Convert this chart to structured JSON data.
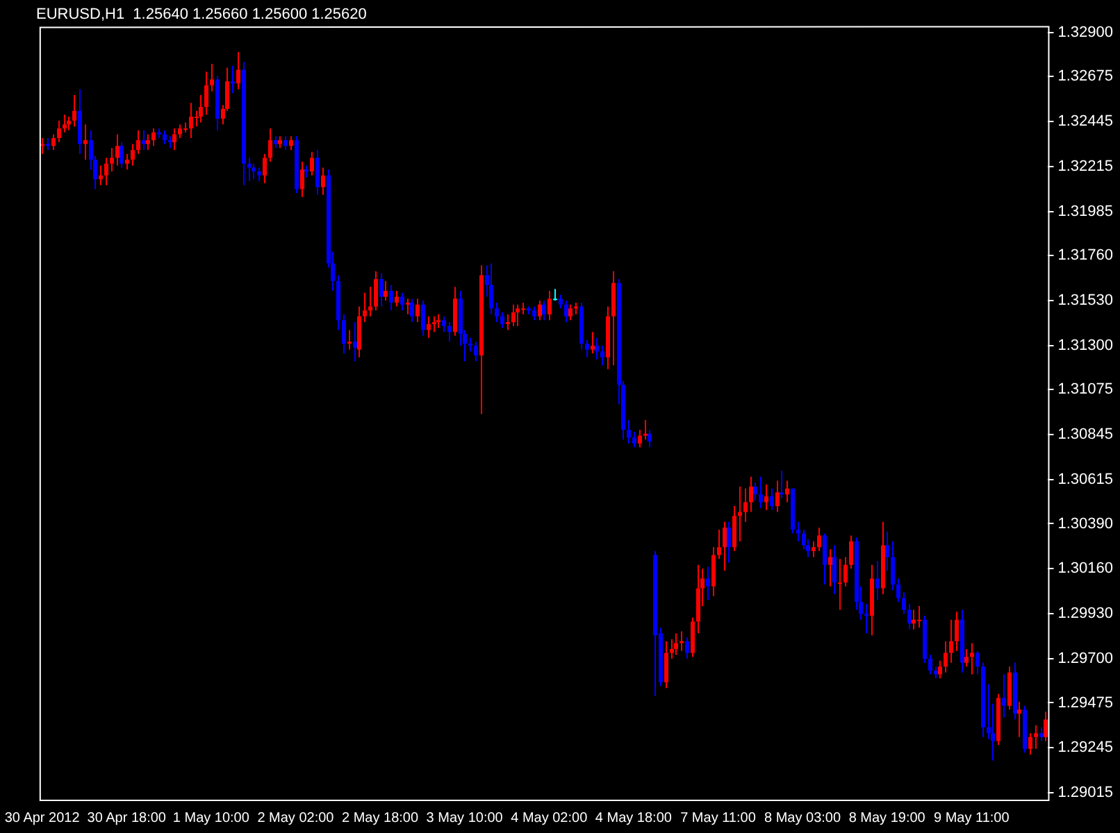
{
  "chart_data": {
    "type": "candlestick",
    "title": "EURUSD,H1  1.25640 1.25660 1.25600 1.25620",
    "categories": [
      "30 Apr 2012",
      null,
      null,
      null,
      null,
      null,
      null,
      null,
      null,
      null,
      null,
      null,
      null,
      null,
      null,
      null,
      "30 Apr 18:00",
      null,
      null,
      null,
      null,
      null,
      null,
      null,
      null,
      null,
      null,
      null,
      null,
      null,
      null,
      null,
      "1 May 10:00",
      null,
      null,
      null,
      null,
      null,
      null,
      null,
      null,
      null,
      null,
      null,
      null,
      null,
      null,
      null,
      "2 May 02:00",
      null,
      null,
      null,
      null,
      null,
      null,
      null,
      null,
      null,
      null,
      null,
      null,
      null,
      null,
      null,
      "2 May 18:00",
      null,
      null,
      null,
      null,
      null,
      null,
      null,
      null,
      null,
      null,
      null,
      null,
      null,
      null,
      null,
      "3 May 10:00",
      null,
      null,
      null,
      null,
      null,
      null,
      null,
      null,
      null,
      null,
      null,
      null,
      null,
      null,
      null,
      "4 May 02:00",
      null,
      null,
      null,
      null,
      null,
      null,
      null,
      null,
      null,
      null,
      null,
      null,
      null,
      null,
      null,
      "4 May 18:00",
      null,
      null,
      null,
      null,
      null,
      null,
      null,
      null,
      null,
      null,
      null,
      null,
      null,
      null,
      null,
      "7 May 11:00",
      null,
      null,
      null,
      null,
      null,
      null,
      null,
      null,
      null,
      null,
      null,
      null,
      null,
      null,
      null,
      "8 May 03:00",
      null,
      null,
      null,
      null,
      null,
      null,
      null,
      null,
      null,
      null,
      null,
      null,
      null,
      null,
      null,
      "8 May 19:00",
      null,
      null,
      null,
      null,
      null,
      null,
      null,
      null,
      null,
      null,
      null,
      null,
      null,
      null,
      null,
      "9 May 11:00",
      null,
      null,
      null,
      null,
      null,
      null,
      null,
      null,
      null,
      null,
      null,
      null,
      null,
      null
    ],
    "ohlc": [
      [
        1.3232,
        1.3236,
        1.3228,
        1.3233
      ],
      [
        1.3233,
        1.3236,
        1.323,
        1.3232
      ],
      [
        1.3232,
        1.3238,
        1.323,
        1.3236
      ],
      [
        1.3236,
        1.3245,
        1.3234,
        1.3241
      ],
      [
        1.3241,
        1.3248,
        1.3239,
        1.3243
      ],
      [
        1.3243,
        1.3247,
        1.324,
        1.3245
      ],
      [
        1.3245,
        1.3258,
        1.3242,
        1.325
      ],
      [
        1.325,
        1.3261,
        1.3228,
        1.3233
      ],
      [
        1.3233,
        1.3243,
        1.3225,
        1.3235
      ],
      [
        1.3235,
        1.324,
        1.322,
        1.3225
      ],
      [
        1.3225,
        1.3227,
        1.321,
        1.3215
      ],
      [
        1.3215,
        1.3222,
        1.3212,
        1.3217
      ],
      [
        1.3217,
        1.3226,
        1.3212,
        1.3223
      ],
      [
        1.3223,
        1.3231,
        1.3219,
        1.3226
      ],
      [
        1.3226,
        1.3238,
        1.3222,
        1.3232
      ],
      [
        1.3232,
        1.3234,
        1.3221,
        1.3223
      ],
      [
        1.3223,
        1.3228,
        1.322,
        1.3225
      ],
      [
        1.3225,
        1.3233,
        1.3222,
        1.323
      ],
      [
        1.323,
        1.324,
        1.3228,
        1.3235
      ],
      [
        1.3235,
        1.324,
        1.323,
        1.3233
      ],
      [
        1.3233,
        1.3238,
        1.323,
        1.3235
      ],
      [
        1.3235,
        1.3241,
        1.3232,
        1.3239
      ],
      [
        1.3239,
        1.3241,
        1.3236,
        1.3238
      ],
      [
        1.3238,
        1.324,
        1.3233,
        1.3235
      ],
      [
        1.3235,
        1.3237,
        1.3231,
        1.3234
      ],
      [
        1.3234,
        1.3241,
        1.323,
        1.3238
      ],
      [
        1.3238,
        1.3243,
        1.3236,
        1.3241
      ],
      [
        1.3241,
        1.3244,
        1.3239,
        1.3241
      ],
      [
        1.3241,
        1.3254,
        1.3236,
        1.3247
      ],
      [
        1.3247,
        1.325,
        1.3242,
        1.3247
      ],
      [
        1.3247,
        1.3258,
        1.3244,
        1.3252
      ],
      [
        1.3252,
        1.327,
        1.3248,
        1.3263
      ],
      [
        1.3263,
        1.3274,
        1.326,
        1.3266
      ],
      [
        1.3266,
        1.3268,
        1.324,
        1.3246
      ],
      [
        1.3246,
        1.3253,
        1.3243,
        1.3251
      ],
      [
        1.3251,
        1.3272,
        1.325,
        1.3265
      ],
      [
        1.3265,
        1.3273,
        1.3259,
        1.3264
      ],
      [
        1.3264,
        1.328,
        1.3261,
        1.3271
      ],
      [
        1.3271,
        1.3275,
        1.3212,
        1.3223
      ],
      [
        1.3223,
        1.3226,
        1.3214,
        1.3221
      ],
      [
        1.3221,
        1.3223,
        1.3215,
        1.3219
      ],
      [
        1.3219,
        1.3221,
        1.3214,
        1.3217
      ],
      [
        1.3217,
        1.3228,
        1.3213,
        1.3226
      ],
      [
        1.3226,
        1.3241,
        1.3224,
        1.3235
      ],
      [
        1.3235,
        1.3237,
        1.3231,
        1.3233
      ],
      [
        1.3233,
        1.3237,
        1.3231,
        1.3235
      ],
      [
        1.3235,
        1.3237,
        1.323,
        1.3232
      ],
      [
        1.3232,
        1.3237,
        1.323,
        1.3235
      ],
      [
        1.3235,
        1.3237,
        1.3208,
        1.321
      ],
      [
        1.321,
        1.3224,
        1.3206,
        1.322
      ],
      [
        1.322,
        1.3222,
        1.3216,
        1.3219
      ],
      [
        1.3219,
        1.3229,
        1.3217,
        1.3226
      ],
      [
        1.3226,
        1.323,
        1.3207,
        1.3211
      ],
      [
        1.3211,
        1.3221,
        1.3207,
        1.3217
      ],
      [
        1.3217,
        1.322,
        1.317,
        1.3172
      ],
      [
        1.3172,
        1.3178,
        1.3158,
        1.3163
      ],
      [
        1.3163,
        1.3166,
        1.3138,
        1.3143
      ],
      [
        1.3143,
        1.3146,
        1.3126,
        1.3131
      ],
      [
        1.3131,
        1.3138,
        1.3128,
        1.3132
      ],
      [
        1.3132,
        1.3142,
        1.3122,
        1.3129
      ],
      [
        1.3128,
        1.315,
        1.3124,
        1.3145
      ],
      [
        1.3145,
        1.3157,
        1.3142,
        1.3148
      ],
      [
        1.3148,
        1.316,
        1.3145,
        1.315
      ],
      [
        1.315,
        1.3168,
        1.3148,
        1.3164
      ],
      [
        1.3164,
        1.3167,
        1.315,
        1.3155
      ],
      [
        1.3155,
        1.3163,
        1.3153,
        1.3158
      ],
      [
        1.3158,
        1.3161,
        1.3148,
        1.3152
      ],
      [
        1.3152,
        1.3158,
        1.315,
        1.3155
      ],
      [
        1.3155,
        1.3157,
        1.3148,
        1.3151
      ],
      [
        1.3151,
        1.3154,
        1.3146,
        1.3152
      ],
      [
        1.3152,
        1.3154,
        1.3142,
        1.3145
      ],
      [
        1.3145,
        1.3154,
        1.3142,
        1.3151
      ],
      [
        1.3151,
        1.3153,
        1.3135,
        1.3138
      ],
      [
        1.3138,
        1.3145,
        1.3134,
        1.3141
      ],
      [
        1.3141,
        1.3145,
        1.3137,
        1.3142
      ],
      [
        1.3142,
        1.3146,
        1.3139,
        1.3143
      ],
      [
        1.3143,
        1.3145,
        1.3137,
        1.314
      ],
      [
        1.314,
        1.3142,
        1.3132,
        1.3137
      ],
      [
        1.3137,
        1.316,
        1.3135,
        1.3154
      ],
      [
        1.3154,
        1.3158,
        1.313,
        1.3136
      ],
      [
        1.3136,
        1.3138,
        1.3122,
        1.3131
      ],
      [
        1.3131,
        1.3134,
        1.3127,
        1.313
      ],
      [
        1.313,
        1.3132,
        1.3122,
        1.3125
      ],
      [
        1.3125,
        1.3171,
        1.3095,
        1.3166
      ],
      [
        1.3166,
        1.3171,
        1.3155,
        1.3161
      ],
      [
        1.3161,
        1.3172,
        1.3146,
        1.3149
      ],
      [
        1.3149,
        1.3152,
        1.3142,
        1.3145
      ],
      [
        1.3145,
        1.3147,
        1.3139,
        1.3141
      ],
      [
        1.3141,
        1.3146,
        1.3138,
        1.3142
      ],
      [
        1.3142,
        1.3151,
        1.314,
        1.3147
      ],
      [
        1.3147,
        1.3151,
        1.314,
        1.3149
      ],
      [
        1.3149,
        1.3152,
        1.3146,
        1.3149
      ],
      [
        1.3149,
        1.315,
        1.3146,
        1.3148
      ],
      [
        1.3148,
        1.315,
        1.3143,
        1.3145
      ],
      [
        1.3145,
        1.3153,
        1.3143,
        1.3151
      ],
      [
        1.3151,
        1.3153,
        1.3143,
        1.3146
      ],
      [
        1.3146,
        1.3158,
        1.3143,
        1.3154
      ],
      [
        1.3154,
        1.3159,
        1.3153,
        1.3154
      ],
      [
        1.3154,
        1.3156,
        1.3149,
        1.3151
      ],
      [
        1.3151,
        1.3153,
        1.3142,
        1.3145
      ],
      [
        1.3145,
        1.3151,
        1.3143,
        1.3149
      ],
      [
        1.3149,
        1.3152,
        1.3146,
        1.315
      ],
      [
        1.315,
        1.3152,
        1.3128,
        1.3131
      ],
      [
        1.3131,
        1.3133,
        1.3124,
        1.3128
      ],
      [
        1.3128,
        1.3137,
        1.3126,
        1.313
      ],
      [
        1.313,
        1.3134,
        1.3123,
        1.3127
      ],
      [
        1.3127,
        1.313,
        1.312,
        1.3124
      ],
      [
        1.3124,
        1.315,
        1.3118,
        1.3145
      ],
      [
        1.3145,
        1.3168,
        1.312,
        1.3162
      ],
      [
        1.3162,
        1.3164,
        1.31,
        1.311
      ],
      [
        1.311,
        1.3112,
        1.3082,
        1.3087
      ],
      [
        1.3087,
        1.3092,
        1.308,
        1.3083
      ],
      [
        1.3083,
        1.3086,
        1.3078,
        1.308
      ],
      [
        1.308,
        1.3087,
        1.3078,
        1.3084
      ],
      [
        1.3084,
        1.3092,
        1.3082,
        1.3085
      ],
      [
        1.3085,
        1.3087,
        1.3078,
        1.3081
      ],
      [
        1.3023,
        1.3025,
        1.2951,
        1.2982
      ],
      [
        1.2983,
        1.2986,
        1.2956,
        1.2958
      ],
      [
        1.2958,
        1.2979,
        1.2955,
        1.2973
      ],
      [
        1.2973,
        1.298,
        1.297,
        1.2975
      ],
      [
        1.2975,
        1.2983,
        1.2972,
        1.2978
      ],
      [
        1.2978,
        1.2984,
        1.2974,
        1.2979
      ],
      [
        1.2979,
        1.2981,
        1.297,
        1.2973
      ],
      [
        1.2973,
        1.2991,
        1.2971,
        1.2989
      ],
      [
        1.2989,
        1.3018,
        1.2983,
        1.3006
      ],
      [
        1.3006,
        1.3016,
        1.2997,
        1.3011
      ],
      [
        1.3011,
        1.3017,
        1.3,
        1.3007
      ],
      [
        1.3007,
        1.3027,
        1.3002,
        1.3023
      ],
      [
        1.3023,
        1.3036,
        1.3021,
        1.3027
      ],
      [
        1.3027,
        1.304,
        1.3015,
        1.3037
      ],
      [
        1.3037,
        1.304,
        1.3019,
        1.3027
      ],
      [
        1.3027,
        1.3048,
        1.3025,
        1.3043
      ],
      [
        1.3043,
        1.3058,
        1.303,
        1.3045
      ],
      [
        1.3045,
        1.3057,
        1.304,
        1.305
      ],
      [
        1.305,
        1.3063,
        1.3045,
        1.3058
      ],
      [
        1.3058,
        1.306,
        1.3051,
        1.3054
      ],
      [
        1.3054,
        1.3063,
        1.3047,
        1.305
      ],
      [
        1.305,
        1.3059,
        1.3046,
        1.3053
      ],
      [
        1.3053,
        1.3057,
        1.3046,
        1.3048
      ],
      [
        1.3048,
        1.3061,
        1.3045,
        1.3055
      ],
      [
        1.3055,
        1.3066,
        1.3052,
        1.3054
      ],
      [
        1.3054,
        1.3061,
        1.305,
        1.3057
      ],
      [
        1.3057,
        1.3057,
        1.3034,
        1.3036
      ],
      [
        1.3036,
        1.304,
        1.303,
        1.3034
      ],
      [
        1.3034,
        1.3036,
        1.3026,
        1.3028
      ],
      [
        1.3028,
        1.3031,
        1.3022,
        1.3025
      ],
      [
        1.3025,
        1.303,
        1.3022,
        1.3027
      ],
      [
        1.3027,
        1.3037,
        1.3025,
        1.3033
      ],
      [
        1.3033,
        1.3034,
        1.3008,
        1.3018
      ],
      [
        1.3018,
        1.3026,
        1.3007,
        1.3022
      ],
      [
        1.3022,
        1.3028,
        1.3003,
        1.3009
      ],
      [
        1.3009,
        1.3021,
        1.2995,
        1.3009
      ],
      [
        1.3009,
        1.3022,
        1.3007,
        1.3018
      ],
      [
        1.3018,
        1.3033,
        1.3016,
        1.303
      ],
      [
        1.303,
        1.3032,
        1.2995,
        1.2999
      ],
      [
        1.2999,
        1.3007,
        1.299,
        1.2993
      ],
      [
        1.2993,
        1.2998,
        1.2983,
        1.2992
      ],
      [
        1.2992,
        1.3018,
        1.2982,
        1.3011
      ],
      [
        1.3011,
        1.302,
        1.3,
        1.3006
      ],
      [
        1.3006,
        1.304,
        1.3003,
        1.3028
      ],
      [
        1.3028,
        1.3035,
        1.3015,
        1.3022
      ],
      [
        1.3022,
        1.303,
        1.3005,
        1.3008
      ],
      [
        1.3008,
        1.3011,
        1.2999,
        1.3001
      ],
      [
        1.3001,
        1.3004,
        1.2993,
        1.2995
      ],
      [
        1.2995,
        1.2998,
        1.2985,
        1.2988
      ],
      [
        1.2988,
        1.2995,
        1.2985,
        1.299
      ],
      [
        1.299,
        1.2997,
        1.2986,
        1.299
      ],
      [
        1.299,
        1.2992,
        1.2968,
        1.297
      ],
      [
        1.297,
        1.2972,
        1.2962,
        1.2964
      ],
      [
        1.2964,
        1.2966,
        1.296,
        1.2962
      ],
      [
        1.2962,
        1.2969,
        1.296,
        1.2966
      ],
      [
        1.2966,
        1.2979,
        1.2963,
        1.2973
      ],
      [
        1.2973,
        1.299,
        1.2968,
        1.2979
      ],
      [
        1.2979,
        1.2994,
        1.2974,
        1.299
      ],
      [
        1.299,
        1.2995,
        1.2963,
        1.2968
      ],
      [
        1.2968,
        1.2975,
        1.2966,
        1.2971
      ],
      [
        1.2971,
        1.2978,
        1.2962,
        1.2973
      ],
      [
        1.2973,
        1.2974,
        1.2962,
        1.2966
      ],
      [
        1.2966,
        1.2968,
        1.293,
        1.2935
      ],
      [
        1.2935,
        1.2957,
        1.2929,
        1.2932
      ],
      [
        1.2932,
        1.2947,
        1.2918,
        1.2928
      ],
      [
        1.2928,
        1.2952,
        1.2926,
        1.295
      ],
      [
        1.295,
        1.2962,
        1.294,
        1.2946
      ],
      [
        1.2946,
        1.2966,
        1.2944,
        1.2963
      ],
      [
        1.2963,
        1.2968,
        1.2939,
        1.2942
      ],
      [
        1.2942,
        1.2948,
        1.293,
        1.2944
      ],
      [
        1.2944,
        1.2946,
        1.2922,
        1.2924
      ],
      [
        1.2924,
        1.2932,
        1.2921,
        1.293
      ],
      [
        1.293,
        1.2936,
        1.2924,
        1.2932
      ],
      [
        1.2932,
        1.2935,
        1.2928,
        1.293
      ],
      [
        1.293,
        1.2943,
        1.2928,
        1.2939
      ]
    ],
    "colors": [
      "#ff0000",
      "#0000ff",
      "#ff0000",
      "#ff0000",
      "#ff0000",
      "#ff0000",
      "#ff0000",
      "#0000ff",
      "#ff0000",
      "#0000ff",
      "#0000ff",
      "#ff0000",
      "#ff0000",
      "#ff0000",
      "#ff0000",
      "#0000ff",
      "#ff0000",
      "#ff0000",
      "#ff0000",
      "#0000ff",
      "#ff0000",
      "#ff0000",
      "#0000ff",
      "#0000ff",
      "#0000ff",
      "#ff0000",
      "#ff0000",
      "#ff0000",
      "#ff0000",
      "#ff0000",
      "#ff0000",
      "#ff0000",
      "#ff0000",
      "#0000ff",
      "#ff0000",
      "#ff0000",
      "#0000ff",
      "#ff0000",
      "#0000ff",
      "#0000ff",
      "#0000ff",
      "#0000ff",
      "#ff0000",
      "#ff0000",
      "#0000ff",
      "#ff0000",
      "#0000ff",
      "#ff0000",
      "#0000ff",
      "#ff0000",
      "#0000ff",
      "#ff0000",
      "#0000ff",
      "#ff0000",
      "#0000ff",
      "#0000ff",
      "#0000ff",
      "#0000ff",
      "#ff0000",
      "#0000ff",
      "#ff0000",
      "#ff0000",
      "#ff0000",
      "#ff0000",
      "#0000ff",
      "#ff0000",
      "#0000ff",
      "#ff0000",
      "#0000ff",
      "#ff0000",
      "#0000ff",
      "#ff0000",
      "#0000ff",
      "#ff0000",
      "#ff0000",
      "#ff0000",
      "#0000ff",
      "#0000ff",
      "#ff0000",
      "#0000ff",
      "#0000ff",
      "#0000ff",
      "#0000ff",
      "#ff0000",
      "#0000ff",
      "#0000ff",
      "#0000ff",
      "#0000ff",
      "#ff0000",
      "#ff0000",
      "#ff0000",
      "#ff0000",
      "#0000ff",
      "#0000ff",
      "#ff0000",
      "#0000ff",
      "#ff0000",
      "#00ffff",
      "#0000ff",
      "#0000ff",
      "#ff0000",
      "#ff0000",
      "#0000ff",
      "#0000ff",
      "#ff0000",
      "#0000ff",
      "#0000ff",
      "#ff0000",
      "#ff0000",
      "#0000ff",
      "#0000ff",
      "#0000ff",
      "#0000ff",
      "#ff0000",
      "#ff0000",
      "#0000ff",
      "#0000ff",
      "#0000ff",
      "#ff0000",
      "#ff0000",
      "#ff0000",
      "#ff0000",
      "#0000ff",
      "#ff0000",
      "#ff0000",
      "#ff0000",
      "#0000ff",
      "#ff0000",
      "#ff0000",
      "#ff0000",
      "#0000ff",
      "#ff0000",
      "#ff0000",
      "#ff0000",
      "#ff0000",
      "#0000ff",
      "#0000ff",
      "#ff0000",
      "#0000ff",
      "#ff0000",
      "#0000ff",
      "#ff0000",
      "#0000ff",
      "#0000ff",
      "#0000ff",
      "#0000ff",
      "#ff0000",
      "#ff0000",
      "#0000ff",
      "#ff0000",
      "#0000ff",
      "#ff0000",
      "#ff0000",
      "#ff0000",
      "#0000ff",
      "#0000ff",
      "#0000ff",
      "#ff0000",
      "#0000ff",
      "#ff0000",
      "#0000ff",
      "#0000ff",
      "#0000ff",
      "#0000ff",
      "#0000ff",
      "#ff0000",
      "#ff0000",
      "#0000ff",
      "#0000ff",
      "#0000ff",
      "#ff0000",
      "#ff0000",
      "#ff0000",
      "#ff0000",
      "#0000ff",
      "#ff0000",
      "#ff0000",
      "#0000ff",
      "#0000ff",
      "#0000ff",
      "#0000ff",
      "#ff0000",
      "#0000ff",
      "#ff0000",
      "#0000ff",
      "#ff0000",
      "#0000ff",
      "#ff0000",
      "#ff0000",
      "#0000ff",
      "#ff0000"
    ],
    "ylim": [
      1.2898,
      1.3293
    ],
    "yticks": [
      {
        "value": 1.329,
        "label": "1.32900"
      },
      {
        "value": 1.32675,
        "label": "1.32675"
      },
      {
        "value": 1.32445,
        "label": "1.32445"
      },
      {
        "value": 1.32215,
        "label": "1.32215"
      },
      {
        "value": 1.31985,
        "label": "1.31985"
      },
      {
        "value": 1.3176,
        "label": "1.31760"
      },
      {
        "value": 1.3153,
        "label": "1.31530"
      },
      {
        "value": 1.313,
        "label": "1.31300"
      },
      {
        "value": 1.31075,
        "label": "1.31075"
      },
      {
        "value": 1.30845,
        "label": "1.30845"
      },
      {
        "value": 1.30615,
        "label": "1.30615"
      },
      {
        "value": 1.3039,
        "label": "1.30390"
      },
      {
        "value": 1.3016,
        "label": "1.30160"
      },
      {
        "value": 1.2993,
        "label": "1.29930"
      },
      {
        "value": 1.297,
        "label": "1.29700"
      },
      {
        "value": 1.29475,
        "label": "1.29475"
      },
      {
        "value": 1.29245,
        "label": "1.29245"
      },
      {
        "value": 1.29015,
        "label": "1.29015"
      }
    ],
    "grid": false,
    "legend": false
  }
}
